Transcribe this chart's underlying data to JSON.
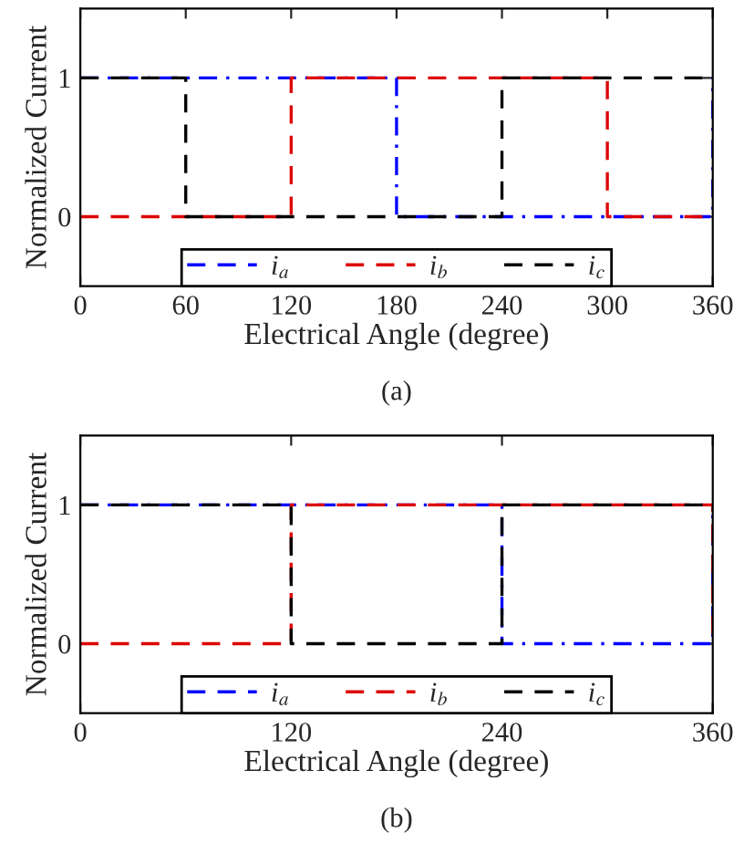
{
  "chart_data": [
    {
      "type": "line",
      "xlabel": "Electrical Angle (degree)",
      "ylabel": "Normalized Current",
      "annotations": [
        "(a)"
      ],
      "xlim": [
        0,
        360
      ],
      "xticks": [
        0,
        60,
        120,
        180,
        240,
        300,
        360
      ],
      "ylim": [
        -0.5,
        1.5
      ],
      "yticks": [
        0,
        1
      ],
      "legend": "bottom",
      "grid": false,
      "series": [
        {
          "name": "i$_{a}$",
          "color": "#0000ff",
          "line_style": "dashdot",
          "x": [
            0,
            180,
            180,
            360,
            360
          ],
          "values": [
            1,
            1,
            0,
            0,
            1
          ]
        },
        {
          "name": "i$_{b}$",
          "color": "#dd0000",
          "line_style": "dashed",
          "x": [
            0,
            120,
            120,
            300,
            300,
            360
          ],
          "values": [
            0,
            0,
            1,
            1,
            0,
            0
          ]
        },
        {
          "name": "i$_{c}$",
          "color": "#000000",
          "line_style": "dashed",
          "x": [
            0,
            60,
            60,
            240,
            240,
            360
          ],
          "values": [
            1,
            1,
            0,
            0,
            1,
            1
          ]
        }
      ]
    },
    {
      "type": "line",
      "xlabel": "Electrical Angle (degree)",
      "ylabel": "Normalized Current",
      "annotations": [
        "(b)"
      ],
      "xlim": [
        0,
        360
      ],
      "xticks": [
        0,
        120,
        240,
        360
      ],
      "ylim": [
        -0.5,
        1.5
      ],
      "yticks": [
        0,
        1
      ],
      "legend": "bottom",
      "grid": false,
      "series": [
        {
          "name": "i$_{a}$",
          "color": "#0000ff",
          "line_style": "dashdot",
          "x": [
            0,
            240,
            240,
            360,
            360
          ],
          "values": [
            1,
            1,
            0,
            0,
            1
          ]
        },
        {
          "name": "i$_{b}$",
          "color": "#dd0000",
          "line_style": "dashed",
          "x": [
            0,
            120,
            120,
            360,
            360
          ],
          "values": [
            0,
            0,
            1,
            1,
            0
          ]
        },
        {
          "name": "i$_{c}$",
          "color": "#000000",
          "line_style": "dashed",
          "x": [
            0,
            120,
            120,
            240,
            240,
            360
          ],
          "values": [
            1,
            1,
            0,
            0,
            1,
            1
          ]
        }
      ]
    }
  ]
}
